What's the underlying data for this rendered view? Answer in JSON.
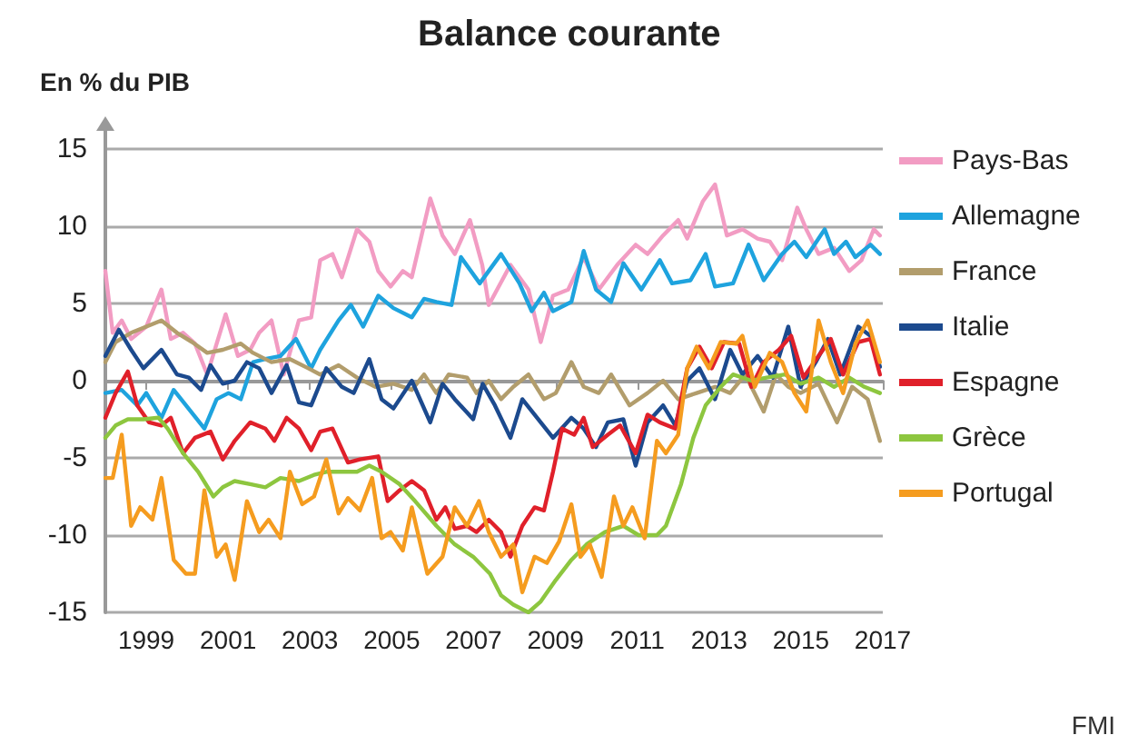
{
  "chart_data": {
    "type": "line",
    "title": "Balance courante",
    "ylabel": "En % du PIB",
    "annotations": [
      "FMI"
    ],
    "xlim": [
      1998,
      2017
    ],
    "xticks": [
      1999,
      2001,
      2003,
      2005,
      2007,
      2009,
      2011,
      2013,
      2015,
      2017
    ],
    "ylim": [
      -15,
      15
    ],
    "yticks": [
      -15,
      -10,
      -5,
      0,
      5,
      10,
      15
    ],
    "grid": "y",
    "legend": "right",
    "marker": "none",
    "line_style": "solid",
    "series": [
      {
        "name": "Pays-Bas",
        "color": "#f29cc3",
        "x": [
          1998.0,
          1998.18,
          1998.4,
          1998.63,
          1999.0,
          1999.37,
          1999.6,
          1999.9,
          2000.19,
          2000.49,
          2000.94,
          2001.24,
          2001.54,
          2001.76,
          2002.06,
          2002.36,
          2002.73,
          2003.03,
          2003.25,
          2003.55,
          2003.78,
          2004.15,
          2004.45,
          2004.67,
          2004.97,
          2005.27,
          2005.49,
          2005.94,
          2006.24,
          2006.54,
          2006.91,
          2007.21,
          2007.37,
          2007.9,
          2008.34,
          2008.64,
          2008.94,
          2009.31,
          2009.69,
          2010.06,
          2010.51,
          2010.96,
          2011.25,
          2011.63,
          2012.0,
          2012.22,
          2012.6,
          2012.9,
          2013.19,
          2013.57,
          2013.94,
          2014.24,
          2014.54,
          2014.91,
          2015.13,
          2015.43,
          2015.81,
          2016.18,
          2016.48,
          2016.78,
          2016.93
        ],
        "values": [
          7.1,
          3.1,
          3.9,
          2.7,
          3.5,
          5.9,
          2.7,
          3.1,
          2.4,
          0.4,
          4.3,
          1.6,
          2.0,
          3.1,
          3.9,
          0.4,
          3.9,
          4.1,
          7.8,
          8.2,
          6.7,
          9.8,
          9.0,
          7.1,
          6.1,
          7.1,
          6.7,
          11.8,
          9.4,
          8.2,
          10.4,
          7.5,
          4.9,
          7.5,
          5.9,
          2.5,
          5.5,
          5.9,
          8.0,
          5.9,
          7.5,
          8.8,
          8.2,
          9.4,
          10.4,
          9.2,
          11.6,
          12.7,
          9.4,
          9.8,
          9.2,
          9.0,
          7.8,
          11.2,
          9.8,
          8.2,
          8.6,
          7.1,
          7.8,
          9.8,
          9.4
        ]
      },
      {
        "name": "Allemagne",
        "color": "#1ea3de",
        "x": [
          1998.0,
          1998.4,
          1998.78,
          1999.0,
          1999.37,
          1999.67,
          1999.97,
          2000.42,
          2000.72,
          2001.01,
          2001.31,
          2001.61,
          2001.91,
          2002.28,
          2002.66,
          2003.03,
          2003.25,
          2003.7,
          2004.0,
          2004.3,
          2004.67,
          2005.04,
          2005.49,
          2005.79,
          2006.09,
          2006.46,
          2006.69,
          2007.15,
          2007.67,
          2008.12,
          2008.42,
          2008.72,
          2008.94,
          2009.39,
          2009.69,
          2009.99,
          2010.36,
          2010.66,
          2011.1,
          2011.55,
          2011.85,
          2012.3,
          2012.67,
          2012.9,
          2013.34,
          2013.72,
          2014.09,
          2014.54,
          2014.84,
          2015.13,
          2015.58,
          2015.81,
          2016.1,
          2016.33,
          2016.7,
          2016.93
        ],
        "values": [
          -0.8,
          -0.6,
          -1.6,
          -0.8,
          -2.4,
          -0.6,
          -1.6,
          -3.1,
          -1.2,
          -0.8,
          -1.2,
          1.2,
          1.4,
          1.6,
          2.7,
          0.8,
          2.0,
          3.9,
          4.9,
          3.5,
          5.5,
          4.7,
          4.1,
          5.3,
          5.1,
          4.9,
          8.0,
          6.3,
          8.2,
          6.3,
          4.5,
          5.7,
          4.5,
          5.1,
          8.4,
          5.9,
          5.1,
          7.6,
          5.9,
          7.8,
          6.3,
          6.5,
          8.2,
          6.1,
          6.3,
          8.8,
          6.5,
          8.2,
          9.0,
          8.0,
          9.8,
          8.2,
          9.0,
          8.0,
          8.8,
          8.2
        ]
      },
      {
        "name": "France",
        "color": "#b29d6c",
        "x": [
          1998.0,
          1998.25,
          1998.63,
          1999.0,
          1999.37,
          1999.75,
          2000.12,
          2000.49,
          2000.87,
          2001.31,
          2001.61,
          2002.06,
          2002.51,
          2002.96,
          2003.25,
          2003.7,
          2004.15,
          2004.6,
          2005.04,
          2005.49,
          2005.79,
          2006.09,
          2006.39,
          2006.84,
          2007.07,
          2007.37,
          2007.67,
          2007.97,
          2008.34,
          2008.72,
          2009.01,
          2009.39,
          2009.69,
          2010.06,
          2010.36,
          2010.81,
          2011.25,
          2011.63,
          2012.0,
          2012.45,
          2012.9,
          2013.27,
          2013.64,
          2014.09,
          2014.39,
          2014.69,
          2014.99,
          2015.43,
          2015.88,
          2016.25,
          2016.63,
          2016.93
        ],
        "values": [
          1.2,
          2.5,
          3.1,
          3.5,
          3.9,
          3.1,
          2.5,
          1.8,
          2.0,
          2.4,
          1.8,
          1.2,
          1.4,
          0.8,
          0.4,
          1.0,
          0.2,
          -0.4,
          -0.2,
          -0.6,
          0.4,
          -0.8,
          0.4,
          0.2,
          -0.8,
          0.0,
          -1.2,
          -0.4,
          0.4,
          -1.2,
          -0.8,
          1.2,
          -0.4,
          -0.8,
          0.4,
          -1.6,
          -0.8,
          0.0,
          -1.2,
          -0.8,
          -0.4,
          -0.8,
          0.4,
          -2.0,
          0.4,
          -0.4,
          -0.8,
          -0.2,
          -2.7,
          -0.4,
          -1.2,
          -3.9
        ]
      },
      {
        "name": "Italie",
        "color": "#1c4a8e",
        "x": [
          1998.0,
          1998.33,
          1998.63,
          1998.93,
          1999.37,
          1999.75,
          2000.04,
          2000.34,
          2000.57,
          2000.87,
          2001.16,
          2001.46,
          2001.76,
          2002.06,
          2002.43,
          2002.73,
          2003.03,
          2003.4,
          2003.78,
          2004.07,
          2004.45,
          2004.75,
          2005.04,
          2005.49,
          2005.94,
          2006.24,
          2006.54,
          2006.99,
          2007.22,
          2007.52,
          2007.9,
          2008.19,
          2008.64,
          2008.94,
          2009.39,
          2009.69,
          2009.99,
          2010.28,
          2010.66,
          2010.96,
          2011.25,
          2011.63,
          2011.93,
          2012.22,
          2012.52,
          2012.9,
          2013.27,
          2013.57,
          2013.94,
          2014.31,
          2014.69,
          2014.99,
          2015.36,
          2015.66,
          2015.96,
          2016.4,
          2016.7,
          2016.93
        ],
        "values": [
          1.6,
          3.3,
          2.0,
          0.8,
          2.0,
          0.4,
          0.2,
          -0.6,
          1.0,
          -0.2,
          0.0,
          1.2,
          0.8,
          -0.8,
          1.0,
          -1.4,
          -1.6,
          0.8,
          -0.4,
          -0.8,
          1.4,
          -1.2,
          -1.8,
          0.0,
          -2.7,
          -0.2,
          -1.2,
          -2.5,
          -0.2,
          -1.6,
          -3.7,
          -1.2,
          -2.7,
          -3.7,
          -2.4,
          -3.1,
          -4.3,
          -2.7,
          -2.5,
          -5.5,
          -2.7,
          -1.6,
          -2.9,
          0.0,
          0.8,
          -1.2,
          2.0,
          0.4,
          1.6,
          0.2,
          3.5,
          -0.4,
          1.2,
          2.7,
          0.4,
          3.5,
          2.9,
          0.9
        ]
      },
      {
        "name": "Espagne",
        "color": "#e0202a",
        "x": [
          1998.0,
          1998.25,
          1998.55,
          1998.78,
          1999.07,
          1999.37,
          1999.6,
          1999.9,
          2000.19,
          2000.57,
          2000.87,
          2001.16,
          2001.54,
          2001.91,
          2002.13,
          2002.43,
          2002.73,
          2003.03,
          2003.25,
          2003.55,
          2003.93,
          2004.22,
          2004.67,
          2004.9,
          2005.19,
          2005.49,
          2005.79,
          2006.09,
          2006.31,
          2006.54,
          2006.84,
          2007.07,
          2007.37,
          2007.67,
          2007.9,
          2008.19,
          2008.49,
          2008.72,
          2008.94,
          2009.16,
          2009.46,
          2009.69,
          2009.91,
          2010.28,
          2010.58,
          2010.96,
          2011.25,
          2011.55,
          2011.93,
          2012.22,
          2012.52,
          2012.82,
          2013.12,
          2013.49,
          2013.79,
          2014.09,
          2014.46,
          2014.76,
          2015.06,
          2015.43,
          2015.73,
          2016.03,
          2016.4,
          2016.7,
          2016.93
        ],
        "values": [
          -2.4,
          -0.8,
          0.6,
          -1.6,
          -2.7,
          -2.9,
          -2.4,
          -4.7,
          -3.7,
          -3.3,
          -5.1,
          -3.9,
          -2.7,
          -3.1,
          -3.9,
          -2.4,
          -3.1,
          -4.5,
          -3.3,
          -3.1,
          -5.3,
          -5.1,
          -4.9,
          -7.8,
          -7.1,
          -6.5,
          -7.1,
          -9.0,
          -8.2,
          -9.6,
          -9.4,
          -9.8,
          -9.0,
          -9.8,
          -11.4,
          -9.4,
          -8.2,
          -8.4,
          -5.9,
          -3.1,
          -3.5,
          -2.4,
          -4.3,
          -3.5,
          -2.9,
          -4.7,
          -2.2,
          -2.7,
          -3.1,
          0.8,
          2.2,
          0.8,
          2.5,
          2.4,
          -0.4,
          1.2,
          2.0,
          2.9,
          0.2,
          1.6,
          2.7,
          0.4,
          2.5,
          2.7,
          0.4
        ]
      },
      {
        "name": "Grèce",
        "color": "#8dc63f",
        "x": [
          1998.0,
          1998.25,
          1998.55,
          1998.93,
          1999.3,
          1999.52,
          1999.9,
          2000.27,
          2000.64,
          2000.87,
          2001.16,
          2001.54,
          2001.91,
          2002.28,
          2002.73,
          2003.1,
          2003.4,
          2003.78,
          2004.15,
          2004.45,
          2004.75,
          2005.19,
          2005.57,
          2006.09,
          2006.54,
          2006.99,
          2007.4,
          2007.67,
          2007.97,
          2008.34,
          2008.64,
          2009.01,
          2009.39,
          2009.76,
          2010.21,
          2010.66,
          2011.03,
          2011.48,
          2011.7,
          2012.07,
          2012.37,
          2012.67,
          2013.04,
          2013.34,
          2013.79,
          2014.16,
          2014.61,
          2014.99,
          2015.43,
          2015.81,
          2016.18,
          2016.55,
          2016.93
        ],
        "values": [
          -3.7,
          -2.9,
          -2.5,
          -2.5,
          -2.4,
          -3.1,
          -4.7,
          -5.9,
          -7.5,
          -6.9,
          -6.5,
          -6.7,
          -6.9,
          -6.3,
          -6.5,
          -6.1,
          -5.9,
          -5.9,
          -5.9,
          -5.5,
          -5.9,
          -6.7,
          -7.8,
          -9.4,
          -10.6,
          -11.4,
          -12.5,
          -13.9,
          -14.5,
          -15.0,
          -14.3,
          -12.9,
          -11.6,
          -10.6,
          -9.8,
          -9.4,
          -10.0,
          -10.0,
          -9.4,
          -6.7,
          -3.7,
          -1.6,
          -0.4,
          0.4,
          0.0,
          0.2,
          0.4,
          -0.2,
          0.2,
          -0.4,
          0.2,
          -0.4,
          -0.8
        ]
      },
      {
        "name": "Portugal",
        "color": "#f59c1f",
        "x": [
          1998.0,
          1998.18,
          1998.4,
          1998.63,
          1998.85,
          1999.15,
          1999.37,
          1999.67,
          1999.97,
          2000.19,
          2000.42,
          2000.72,
          2000.94,
          2001.16,
          2001.46,
          2001.76,
          2001.99,
          2002.28,
          2002.51,
          2002.81,
          2003.1,
          2003.4,
          2003.7,
          2003.93,
          2004.22,
          2004.52,
          2004.75,
          2004.97,
          2005.27,
          2005.49,
          2005.87,
          2006.24,
          2006.54,
          2006.84,
          2007.13,
          2007.37,
          2007.67,
          2007.97,
          2008.19,
          2008.49,
          2008.79,
          2009.09,
          2009.39,
          2009.61,
          2009.84,
          2010.13,
          2010.43,
          2010.66,
          2010.88,
          2011.18,
          2011.48,
          2011.7,
          2012.0,
          2012.22,
          2012.45,
          2012.75,
          2013.04,
          2013.42,
          2013.57,
          2013.87,
          2014.24,
          2014.54,
          2014.84,
          2015.13,
          2015.43,
          2015.73,
          2016.03,
          2016.33,
          2016.63,
          2016.93
        ],
        "values": [
          -6.3,
          -6.3,
          -3.5,
          -9.4,
          -8.2,
          -9.0,
          -6.3,
          -11.6,
          -12.5,
          -12.5,
          -7.1,
          -11.4,
          -10.6,
          -12.9,
          -7.8,
          -9.8,
          -9.0,
          -10.2,
          -5.9,
          -8.0,
          -7.5,
          -5.1,
          -8.6,
          -7.6,
          -8.4,
          -6.3,
          -10.2,
          -9.8,
          -11.0,
          -8.2,
          -12.5,
          -11.4,
          -8.2,
          -9.4,
          -7.8,
          -9.8,
          -11.4,
          -10.6,
          -13.7,
          -11.4,
          -11.8,
          -10.4,
          -8.0,
          -11.4,
          -10.6,
          -12.7,
          -7.5,
          -9.4,
          -8.2,
          -10.2,
          -3.9,
          -4.7,
          -3.5,
          0.8,
          2.2,
          0.8,
          2.5,
          2.4,
          2.9,
          -0.4,
          1.8,
          1.2,
          -0.8,
          -2.0,
          3.9,
          1.2,
          -0.8,
          2.4,
          3.9,
          1.2
        ]
      }
    ]
  }
}
